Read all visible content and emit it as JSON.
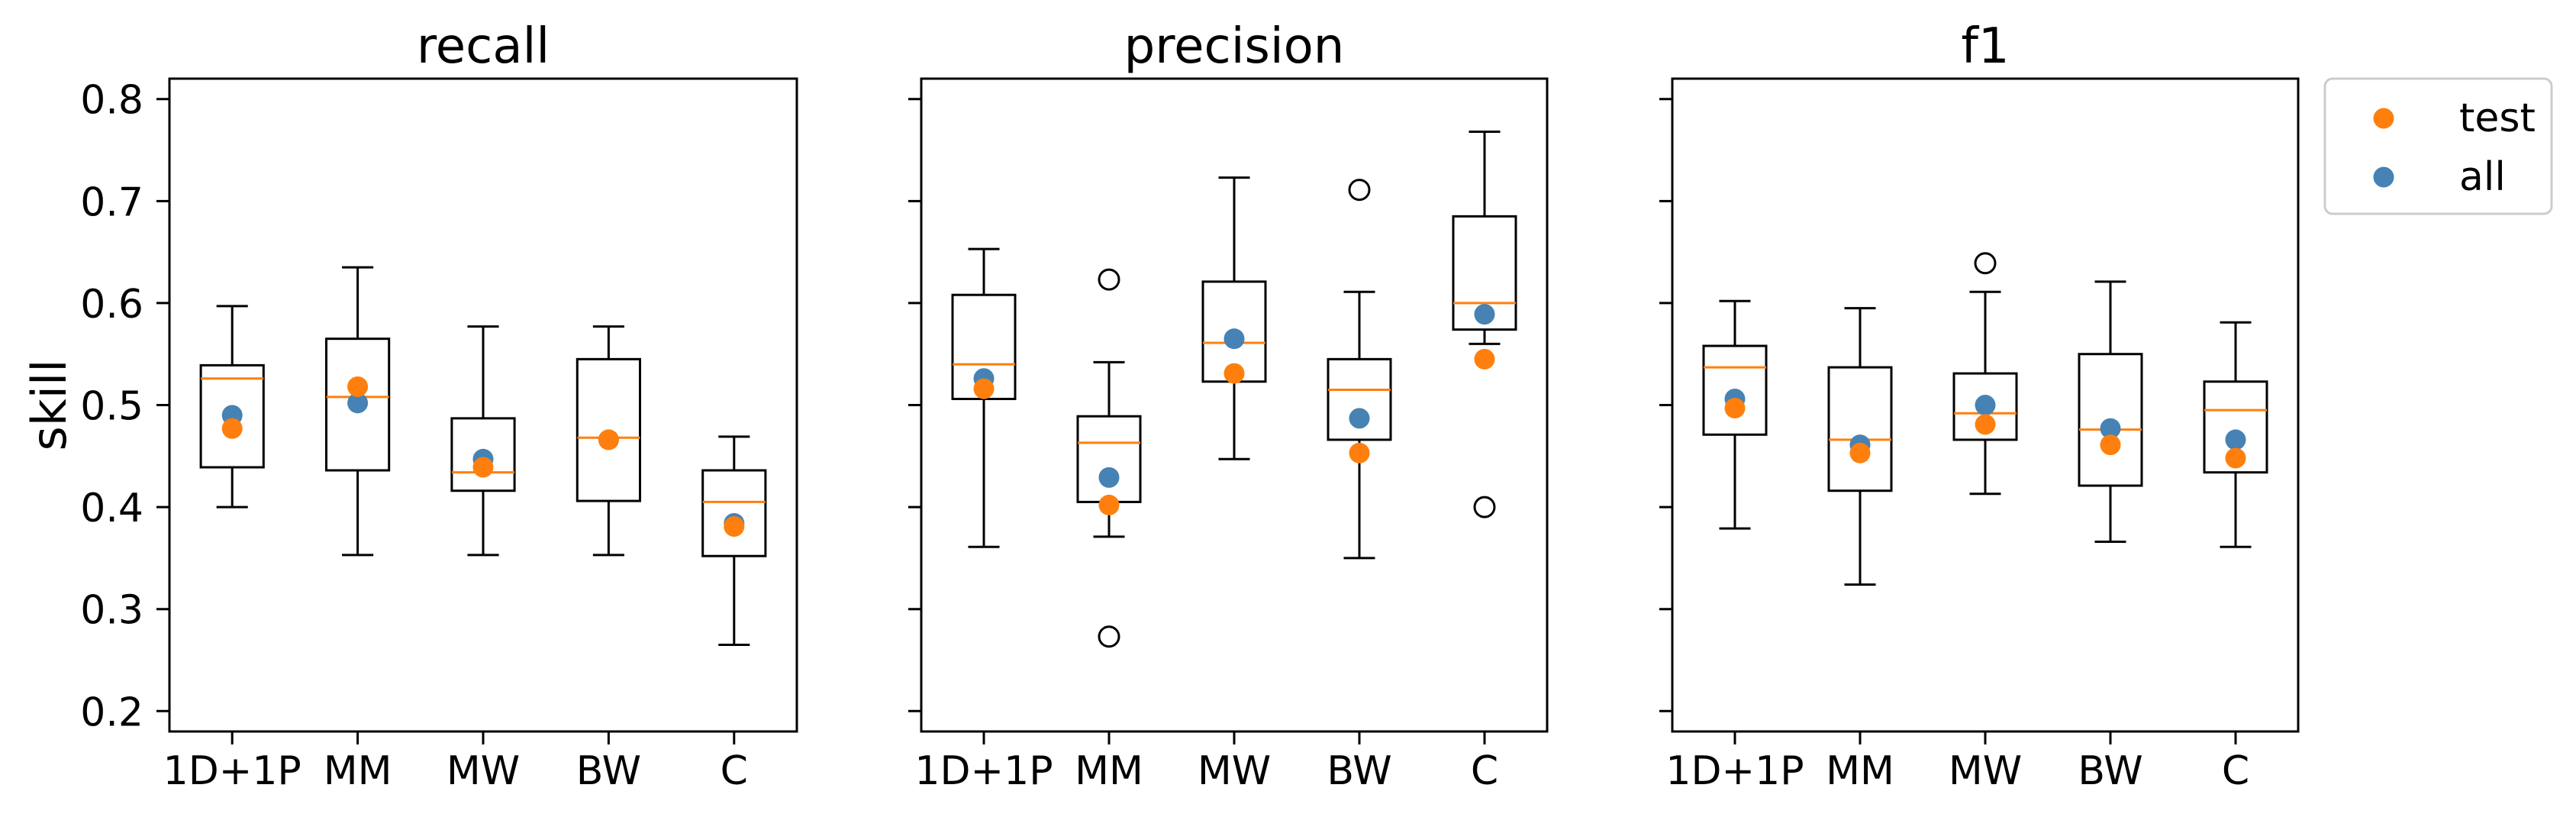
{
  "colors": {
    "background": "#ffffff",
    "test": "#ff7f0e",
    "all": "#4682b4",
    "median": "#ff7f0e",
    "box_line": "#000000",
    "legend_face": "#ffffff",
    "legend_edge": "#cccccc"
  },
  "chart_data": [
    {
      "type": "box",
      "title": "recall",
      "ylabel": "skill",
      "categories": [
        "1D+1P",
        "MM",
        "MW",
        "BW",
        "C"
      ],
      "ylim": [
        0.18,
        0.82
      ],
      "yticks": [
        0.2,
        0.3,
        0.4,
        0.5,
        0.6,
        0.7,
        0.8
      ],
      "ytick_labels": [
        "0.2",
        "0.3",
        "0.4",
        "0.5",
        "0.6",
        "0.7",
        "0.8"
      ],
      "grid": false,
      "boxes": [
        {
          "whislo": 0.4,
          "q1": 0.439,
          "med": 0.526,
          "q3": 0.539,
          "whishi": 0.597,
          "fliers": []
        },
        {
          "whislo": 0.353,
          "q1": 0.436,
          "med": 0.508,
          "q3": 0.565,
          "whishi": 0.635,
          "fliers": []
        },
        {
          "whislo": 0.353,
          "q1": 0.416,
          "med": 0.434,
          "q3": 0.487,
          "whishi": 0.577,
          "fliers": []
        },
        {
          "whislo": 0.353,
          "q1": 0.406,
          "med": 0.468,
          "q3": 0.545,
          "whishi": 0.577,
          "fliers": []
        },
        {
          "whislo": 0.265,
          "q1": 0.352,
          "med": 0.405,
          "q3": 0.436,
          "whishi": 0.469,
          "fliers": []
        }
      ],
      "series": {
        "test": [
          0.477,
          0.518,
          0.439,
          0.466,
          0.381
        ],
        "all": [
          0.49,
          0.502,
          0.447,
          0.466,
          0.384
        ]
      }
    },
    {
      "type": "box",
      "title": "precision",
      "categories": [
        "1D+1P",
        "MM",
        "MW",
        "BW",
        "C"
      ],
      "ylim": [
        0.18,
        0.82
      ],
      "yticks": [
        0.2,
        0.3,
        0.4,
        0.5,
        0.6,
        0.7,
        0.8
      ],
      "grid": false,
      "boxes": [
        {
          "whislo": 0.361,
          "q1": 0.506,
          "med": 0.54,
          "q3": 0.608,
          "whishi": 0.653,
          "fliers": []
        },
        {
          "whislo": 0.371,
          "q1": 0.405,
          "med": 0.463,
          "q3": 0.489,
          "whishi": 0.542,
          "fliers": [
            0.623,
            0.273
          ]
        },
        {
          "whislo": 0.447,
          "q1": 0.523,
          "med": 0.561,
          "q3": 0.621,
          "whishi": 0.723,
          "fliers": []
        },
        {
          "whislo": 0.35,
          "q1": 0.466,
          "med": 0.515,
          "q3": 0.545,
          "whishi": 0.611,
          "fliers": [
            0.711
          ]
        },
        {
          "whislo": 0.56,
          "q1": 0.574,
          "med": 0.6,
          "q3": 0.685,
          "whishi": 0.768,
          "fliers": [
            0.4
          ]
        }
      ],
      "series": {
        "test": [
          0.516,
          0.402,
          0.531,
          0.453,
          0.545
        ],
        "all": [
          0.526,
          0.429,
          0.565,
          0.487,
          0.589
        ]
      }
    },
    {
      "type": "box",
      "title": "f1",
      "categories": [
        "1D+1P",
        "MM",
        "MW",
        "BW",
        "C"
      ],
      "ylim": [
        0.18,
        0.82
      ],
      "yticks": [
        0.2,
        0.3,
        0.4,
        0.5,
        0.6,
        0.7,
        0.8
      ],
      "grid": false,
      "boxes": [
        {
          "whislo": 0.379,
          "q1": 0.471,
          "med": 0.537,
          "q3": 0.558,
          "whishi": 0.602,
          "fliers": []
        },
        {
          "whislo": 0.324,
          "q1": 0.416,
          "med": 0.466,
          "q3": 0.537,
          "whishi": 0.595,
          "fliers": []
        },
        {
          "whislo": 0.413,
          "q1": 0.466,
          "med": 0.492,
          "q3": 0.531,
          "whishi": 0.611,
          "fliers": [
            0.639
          ]
        },
        {
          "whislo": 0.366,
          "q1": 0.421,
          "med": 0.476,
          "q3": 0.55,
          "whishi": 0.621,
          "fliers": []
        },
        {
          "whislo": 0.361,
          "q1": 0.434,
          "med": 0.495,
          "q3": 0.523,
          "whishi": 0.581,
          "fliers": []
        }
      ],
      "series": {
        "test": [
          0.497,
          0.453,
          0.481,
          0.461,
          0.448
        ],
        "all": [
          0.506,
          0.461,
          0.5,
          0.477,
          0.466
        ]
      },
      "legend": {
        "placement": "outside-upper-right",
        "entries": [
          {
            "name": "test"
          },
          {
            "name": "all"
          }
        ]
      }
    }
  ]
}
